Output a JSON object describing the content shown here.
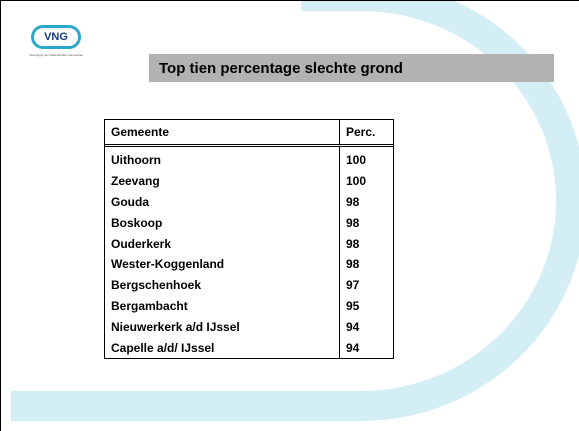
{
  "logo": {
    "text": "VNG",
    "subtitle": "Vereniging van Nederlandse Gemeenten"
  },
  "title": "Top tien percentage slechte grond",
  "table": {
    "columns": [
      "Gemeente",
      "Perc."
    ],
    "rows": [
      [
        "Uithoorn",
        100
      ],
      [
        "Zeevang",
        100
      ],
      [
        "Gouda",
        98
      ],
      [
        "Boskoop",
        98
      ],
      [
        "Ouderkerk",
        98
      ],
      [
        "Wester-Koggenland",
        98
      ],
      [
        "Bergschenhoek",
        97
      ],
      [
        "Bergambacht",
        95
      ],
      [
        "Nieuwerkerk a/d IJssel",
        94
      ],
      [
        "Capelle a/d/ IJssel",
        94
      ]
    ]
  }
}
